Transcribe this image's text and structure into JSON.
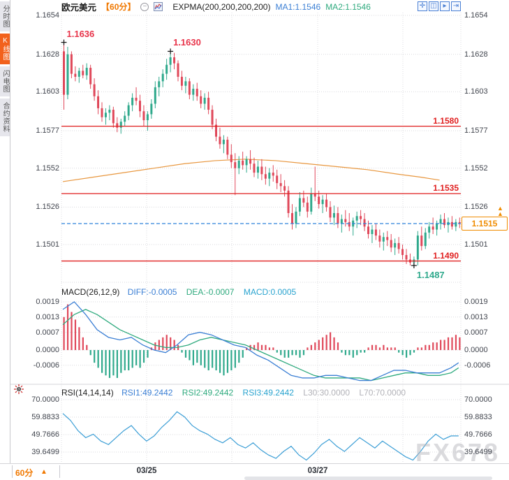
{
  "sidebar": {
    "tabs": [
      {
        "label": "分时图",
        "active": false
      },
      {
        "label": "K线图",
        "active": true
      },
      {
        "label": "闪电图",
        "active": false
      },
      {
        "label": "合约资料",
        "active": false
      }
    ]
  },
  "toolbar": {
    "symbol": "欧元美元",
    "period": "【60分】",
    "collapse_glyph": "−",
    "indicator_label": "EXPMA(200,200,200,200)",
    "ma1_label": "MA1:1.1546",
    "ma2_label": "MA2:1.1546",
    "right_icons": [
      {
        "name": "crosshair-icon",
        "glyph": "✛"
      },
      {
        "name": "zoom-axis-icon",
        "glyph": "◫"
      },
      {
        "name": "pan-chart-icon",
        "glyph": "▸"
      },
      {
        "name": "shift-right-icon",
        "glyph": "⇥"
      }
    ]
  },
  "bottom_bar": {
    "period_label": "60分",
    "arrow_glyph": "▲",
    "dates": [
      "03/25",
      "03/27"
    ]
  },
  "watermark": "FX678",
  "colors": {
    "up": "#2fa98c",
    "down": "#e0485a",
    "expma": "#e8973f",
    "support_resistance": "#e01f1f",
    "current_price": "#f08c00",
    "diff": "#3b7fd4",
    "dea": "#2faa7e",
    "macd_hist_pos": "#e0485a",
    "macd_hist_neg": "#2fa98c",
    "rsi_line": "#3d9fd6",
    "dashed_price_line": "#2f82d9"
  },
  "chart_data": [
    {
      "type": "candlestick",
      "panel": "price",
      "title": "欧元美元 60分",
      "y_ticks": [
        1.1654,
        1.1628,
        1.1603,
        1.1577,
        1.1552,
        1.1526,
        1.1501
      ],
      "ylim": [
        1.1475,
        1.166
      ],
      "h_lines": [
        {
          "value": 1.158,
          "label": "1.1580"
        },
        {
          "value": 1.1535,
          "label": "1.1535"
        },
        {
          "value": 1.149,
          "label": "1.1490"
        }
      ],
      "current_price": {
        "value": 1.1515,
        "label": "1.1515"
      },
      "annotations": [
        {
          "label": "1.1636",
          "index": 0,
          "anchor": "high",
          "color": "red"
        },
        {
          "label": "1.1630",
          "index": 28,
          "anchor": "high",
          "color": "red"
        },
        {
          "label": "1.1487",
          "index": 92,
          "anchor": "low",
          "color": "green"
        }
      ],
      "expma_points": [
        [
          0,
          1.1543
        ],
        [
          8,
          1.1546
        ],
        [
          16,
          1.1549
        ],
        [
          24,
          1.1552
        ],
        [
          32,
          1.1555
        ],
        [
          40,
          1.1557
        ],
        [
          48,
          1.1558
        ],
        [
          56,
          1.1557
        ],
        [
          64,
          1.1555
        ],
        [
          72,
          1.1553
        ],
        [
          80,
          1.1551
        ],
        [
          88,
          1.1548
        ],
        [
          94,
          1.1546
        ],
        [
          99,
          1.1544
        ]
      ],
      "candles": [
        [
          1.163,
          1.1636,
          1.1591,
          1.1601
        ],
        [
          1.1601,
          1.1633,
          1.1598,
          1.1628
        ],
        [
          1.1628,
          1.163,
          1.1612,
          1.1615
        ],
        [
          1.1615,
          1.162,
          1.161,
          1.1613
        ],
        [
          1.1613,
          1.1619,
          1.1609,
          1.1617
        ],
        [
          1.1617,
          1.1621,
          1.1612,
          1.1614
        ],
        [
          1.1614,
          1.1622,
          1.1611,
          1.1619
        ],
        [
          1.1619,
          1.1621,
          1.1605,
          1.1608
        ],
        [
          1.1608,
          1.1612,
          1.1597,
          1.16
        ],
        [
          1.16,
          1.1604,
          1.1588,
          1.1592
        ],
        [
          1.1592,
          1.1596,
          1.1583,
          1.1586
        ],
        [
          1.1586,
          1.1592,
          1.1581,
          1.1589
        ],
        [
          1.1589,
          1.1594,
          1.1584,
          1.1591
        ],
        [
          1.1591,
          1.1593,
          1.1579,
          1.1582
        ],
        [
          1.1582,
          1.1586,
          1.1576,
          1.1579
        ],
        [
          1.1579,
          1.1585,
          1.1575,
          1.1583
        ],
        [
          1.1583,
          1.159,
          1.158,
          1.1587
        ],
        [
          1.1587,
          1.1596,
          1.1584,
          1.1594
        ],
        [
          1.1594,
          1.1602,
          1.159,
          1.1599
        ],
        [
          1.1599,
          1.1606,
          1.1594,
          1.1597
        ],
        [
          1.1597,
          1.1601,
          1.1586,
          1.159
        ],
        [
          1.159,
          1.1594,
          1.158,
          1.1584
        ],
        [
          1.1584,
          1.159,
          1.1577,
          1.1588
        ],
        [
          1.1588,
          1.1598,
          1.1585,
          1.1595
        ],
        [
          1.1595,
          1.161,
          1.1592,
          1.1606
        ],
        [
          1.1606,
          1.1613,
          1.16,
          1.161
        ],
        [
          1.161,
          1.1618,
          1.1606,
          1.1615
        ],
        [
          1.1615,
          1.1625,
          1.1611,
          1.1621
        ],
        [
          1.1621,
          1.163,
          1.1616,
          1.1626
        ],
        [
          1.1626,
          1.1629,
          1.1618,
          1.1622
        ],
        [
          1.1622,
          1.1624,
          1.161,
          1.1613
        ],
        [
          1.1613,
          1.1617,
          1.1604,
          1.1607
        ],
        [
          1.1607,
          1.1613,
          1.1602,
          1.161
        ],
        [
          1.161,
          1.1612,
          1.1598,
          1.1601
        ],
        [
          1.1601,
          1.1608,
          1.1597,
          1.1605
        ],
        [
          1.1605,
          1.1609,
          1.1597,
          1.16
        ],
        [
          1.16,
          1.1604,
          1.1592,
          1.1595
        ],
        [
          1.1595,
          1.1602,
          1.1591,
          1.1599
        ],
        [
          1.1599,
          1.1603,
          1.1588,
          1.1591
        ],
        [
          1.1591,
          1.1594,
          1.1578,
          1.1581
        ],
        [
          1.1581,
          1.1585,
          1.157,
          1.1573
        ],
        [
          1.1573,
          1.1579,
          1.1565,
          1.1568
        ],
        [
          1.1568,
          1.1574,
          1.1562,
          1.1571
        ],
        [
          1.1571,
          1.1573,
          1.1558,
          1.1561
        ],
        [
          1.1561,
          1.1568,
          1.1552,
          1.1556
        ],
        [
          1.1556,
          1.1562,
          1.1534,
          1.1552
        ],
        [
          1.1552,
          1.156,
          1.1548,
          1.1557
        ],
        [
          1.1557,
          1.1563,
          1.1551,
          1.1554
        ],
        [
          1.1554,
          1.156,
          1.1549,
          1.1558
        ],
        [
          1.1558,
          1.1564,
          1.1551,
          1.1555
        ],
        [
          1.1555,
          1.1559,
          1.1546,
          1.1549
        ],
        [
          1.1549,
          1.1557,
          1.1545,
          1.1553
        ],
        [
          1.1553,
          1.1558,
          1.1544,
          1.1548
        ],
        [
          1.1548,
          1.1553,
          1.1541,
          1.1545
        ],
        [
          1.1545,
          1.1552,
          1.154,
          1.1549
        ],
        [
          1.1549,
          1.1554,
          1.1543,
          1.1547
        ],
        [
          1.1547,
          1.1551,
          1.1538,
          1.1542
        ],
        [
          1.1542,
          1.1548,
          1.1536,
          1.154
        ],
        [
          1.154,
          1.1544,
          1.1533,
          1.1537
        ],
        [
          1.1537,
          1.154,
          1.1519,
          1.1522
        ],
        [
          1.1522,
          1.1528,
          1.1511,
          1.1515
        ],
        [
          1.1515,
          1.1526,
          1.1512,
          1.1523
        ],
        [
          1.1523,
          1.1536,
          1.152,
          1.1532
        ],
        [
          1.1532,
          1.1537,
          1.1526,
          1.1529
        ],
        [
          1.1529,
          1.1533,
          1.1519,
          1.1523
        ],
        [
          1.1523,
          1.1539,
          1.1521,
          1.1535
        ],
        [
          1.1535,
          1.1553,
          1.153,
          1.1533
        ],
        [
          1.1533,
          1.1537,
          1.1525,
          1.1528
        ],
        [
          1.1528,
          1.1534,
          1.1522,
          1.1531
        ],
        [
          1.1531,
          1.1535,
          1.1523,
          1.1526
        ],
        [
          1.1526,
          1.153,
          1.1516,
          1.1519
        ],
        [
          1.1519,
          1.1527,
          1.1514,
          1.1522
        ],
        [
          1.1522,
          1.1526,
          1.1512,
          1.1515
        ],
        [
          1.1515,
          1.1521,
          1.1509,
          1.1518
        ],
        [
          1.1518,
          1.1524,
          1.1513,
          1.1516
        ],
        [
          1.1516,
          1.1522,
          1.151,
          1.1513
        ],
        [
          1.1513,
          1.1519,
          1.1507,
          1.1517
        ],
        [
          1.1517,
          1.1523,
          1.1512,
          1.152
        ],
        [
          1.152,
          1.1524,
          1.1514,
          1.1518
        ],
        [
          1.1518,
          1.1522,
          1.151,
          1.1513
        ],
        [
          1.1513,
          1.1517,
          1.1505,
          1.1508
        ],
        [
          1.1508,
          1.1514,
          1.1502,
          1.1511
        ],
        [
          1.1511,
          1.1515,
          1.1504,
          1.1507
        ],
        [
          1.1507,
          1.1511,
          1.1499,
          1.1503
        ],
        [
          1.1503,
          1.1509,
          1.1497,
          1.1506
        ],
        [
          1.1506,
          1.151,
          1.15,
          1.1504
        ],
        [
          1.1504,
          1.1508,
          1.1496,
          1.1499
        ],
        [
          1.1499,
          1.1505,
          1.1494,
          1.1502
        ],
        [
          1.1502,
          1.1506,
          1.1495,
          1.1498
        ],
        [
          1.1498,
          1.1501,
          1.1491,
          1.1494
        ],
        [
          1.1494,
          1.1498,
          1.1488,
          1.1491
        ],
        [
          1.1491,
          1.1495,
          1.1487,
          1.1489
        ],
        [
          1.1489,
          1.1493,
          1.1487,
          1.1491
        ],
        [
          1.1491,
          1.151,
          1.1487,
          1.1507
        ],
        [
          1.1507,
          1.1513,
          1.1497,
          1.15
        ],
        [
          1.15,
          1.1512,
          1.1498,
          1.1509
        ],
        [
          1.1509,
          1.1516,
          1.1505,
          1.1513
        ],
        [
          1.1513,
          1.1519,
          1.1508,
          1.1511
        ],
        [
          1.1511,
          1.1517,
          1.1507,
          1.1515
        ],
        [
          1.1515,
          1.1521,
          1.1511,
          1.1518
        ],
        [
          1.1518,
          1.1522,
          1.1512,
          1.1514
        ],
        [
          1.1514,
          1.1519,
          1.1509,
          1.1516
        ],
        [
          1.1516,
          1.152,
          1.1511,
          1.1513
        ],
        [
          1.1513,
          1.1518,
          1.151,
          1.1516
        ],
        [
          1.1516,
          1.1519,
          1.1512,
          1.1515
        ]
      ]
    },
    {
      "type": "macd",
      "label": "MACD(26,12,9)",
      "diff_label": "DIFF:-0.0005",
      "dea_label": "DEA:-0.0007",
      "macd_label": "MACD:0.0005",
      "y_ticks": [
        0.0019,
        0.0013,
        0.0007,
        0.0,
        -0.0006
      ],
      "y_tick_labels": [
        "0.0019",
        "0.0013",
        "0.0007",
        "0.0000",
        "-0.0006"
      ],
      "hist": [
        0.0013,
        0.0018,
        0.0015,
        0.0012,
        0.0009,
        0.0005,
        0.0002,
        -0.0002,
        -0.0005,
        -0.0007,
        -0.0009,
        -0.001,
        -0.0011,
        -0.001,
        -0.0011,
        -0.0009,
        -0.0008,
        -0.0008,
        -0.0007,
        -0.0006,
        -0.0007,
        -0.0005,
        -0.0003,
        0.0001,
        0.0003,
        0.0004,
        0.0005,
        0.0006,
        0.0005,
        0.0004,
        0.0002,
        -0.0001,
        -0.0003,
        -0.0004,
        -0.0006,
        -0.0005,
        -0.0006,
        -0.0007,
        -0.0008,
        -0.0007,
        -0.0008,
        -0.0009,
        -0.001,
        -0.0009,
        -0.0008,
        -0.0007,
        -0.0005,
        -0.0003,
        0.0001,
        0.0002,
        0.0002,
        0.0003,
        0.0002,
        0.0002,
        0.0001,
        0.0001,
        -0.0001,
        -0.0002,
        -0.0003,
        -0.0003,
        -0.0002,
        -0.0002,
        -0.0003,
        -0.0002,
        0.0001,
        0.0002,
        0.0003,
        0.0004,
        0.0005,
        0.0006,
        0.0007,
        0.0005,
        0.0003,
        -0.0001,
        -0.0002,
        -0.0002,
        -0.0003,
        -0.0002,
        -0.0001,
        -0.0001,
        0.0001,
        0.0002,
        0.0002,
        0.0001,
        0.0002,
        0.0001,
        0.0001,
        0.0001,
        -0.0001,
        -0.0002,
        -0.0003,
        -0.0002,
        -0.0001,
        0.0001,
        0.0001,
        0.0002,
        0.0002,
        0.0003,
        0.0003,
        0.0004,
        0.0004,
        0.0005,
        0.0005,
        0.0006,
        0.0005
      ],
      "diff": {
        "step": 3,
        "values": [
          0.0016,
          0.0019,
          0.0014,
          0.0008,
          0.0005,
          0.0004,
          0.0005,
          0.0002,
          0.0,
          -0.0001,
          0.0002,
          0.0006,
          0.0007,
          0.0006,
          0.0004,
          0.0002,
          0.0001,
          -0.0002,
          -0.0004,
          -0.0007,
          -0.001,
          -0.0011,
          -0.0011,
          -0.001,
          -0.001,
          -0.0011,
          -0.0012,
          -0.0012,
          -0.001,
          -0.0008,
          -0.0008,
          -0.0009,
          -0.0009,
          -0.0009,
          -0.0007,
          -0.0005
        ]
      },
      "dea": {
        "step": 3,
        "values": [
          0.001,
          0.0014,
          0.0016,
          0.0014,
          0.0011,
          0.0008,
          0.0006,
          0.0004,
          0.0002,
          0.0001,
          0.0001,
          0.0002,
          0.0004,
          0.0005,
          0.0004,
          0.0003,
          0.0002,
          0.0,
          -0.0002,
          -0.0004,
          -0.0006,
          -0.0008,
          -0.001,
          -0.0011,
          -0.0011,
          -0.0011,
          -0.0011,
          -0.0012,
          -0.0011,
          -0.001,
          -0.0009,
          -0.0009,
          -0.001,
          -0.001,
          -0.0009,
          -0.0007
        ]
      }
    },
    {
      "type": "rsi",
      "label": "RSI(14,14,14)",
      "rsi1_label": "RSI1:49.2442",
      "rsi2_label": "RSI2:49.2442",
      "rsi3_label": "RSI3:49.2442",
      "l30_label": "L30:30.0000",
      "l70_label": "L70:70.0000",
      "y_ticks": [
        70.0,
        59.8833,
        49.7666,
        39.6499
      ],
      "y_tick_labels": [
        "70.0000",
        "59.8833",
        "49.7666",
        "39.6499"
      ],
      "values": {
        "step": 2,
        "values": [
          62,
          58,
          52,
          48,
          50,
          46,
          44,
          48,
          52,
          55,
          50,
          46,
          49,
          54,
          58,
          63,
          60,
          55,
          52,
          50,
          47,
          45,
          48,
          44,
          42,
          45,
          41,
          38,
          36,
          40,
          43,
          38,
          35,
          39,
          44,
          47,
          43,
          40,
          44,
          48,
          45,
          42,
          46,
          43,
          40,
          37,
          35,
          40,
          46,
          50,
          47,
          49,
          49
        ]
      }
    }
  ]
}
